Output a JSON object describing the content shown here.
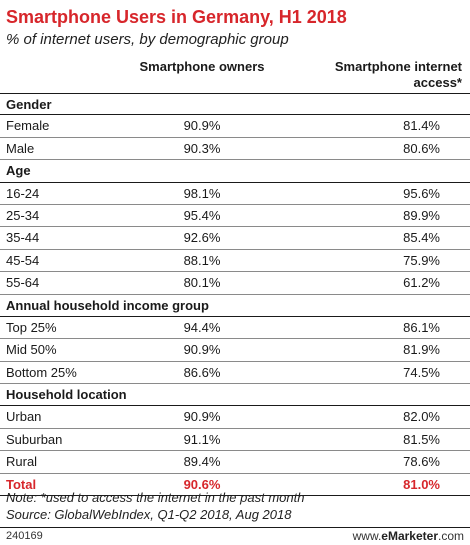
{
  "chart_data": {
    "type": "table",
    "title": "Smartphone Users in Germany, H1 2018",
    "subtitle": "% of internet users, by demographic group",
    "columns": [
      "Smartphone owners",
      "Smartphone internet access*"
    ],
    "rows": [
      {
        "kind": "group",
        "label": "Gender",
        "v1": "",
        "v2": ""
      },
      {
        "kind": "row",
        "label": "Female",
        "v1": "90.9%",
        "v2": "81.4%"
      },
      {
        "kind": "row",
        "label": "Male",
        "v1": "90.3%",
        "v2": "80.6%"
      },
      {
        "kind": "group",
        "label": "Age",
        "v1": "",
        "v2": ""
      },
      {
        "kind": "row",
        "label": "16-24",
        "v1": "98.1%",
        "v2": "95.6%"
      },
      {
        "kind": "row",
        "label": "25-34",
        "v1": "95.4%",
        "v2": "89.9%"
      },
      {
        "kind": "row",
        "label": "35-44",
        "v1": "92.6%",
        "v2": "85.4%"
      },
      {
        "kind": "row",
        "label": "45-54",
        "v1": "88.1%",
        "v2": "75.9%"
      },
      {
        "kind": "row",
        "label": "55-64",
        "v1": "80.1%",
        "v2": "61.2%"
      },
      {
        "kind": "group",
        "label": "Annual household income group",
        "v1": "",
        "v2": ""
      },
      {
        "kind": "row",
        "label": "Top 25%",
        "v1": "94.4%",
        "v2": "86.1%"
      },
      {
        "kind": "row",
        "label": "Mid 50%",
        "v1": "90.9%",
        "v2": "81.9%"
      },
      {
        "kind": "row",
        "label": "Bottom 25%",
        "v1": "86.6%",
        "v2": "74.5%"
      },
      {
        "kind": "group",
        "label": "Household location",
        "v1": "",
        "v2": ""
      },
      {
        "kind": "row",
        "label": "Urban",
        "v1": "90.9%",
        "v2": "82.0%"
      },
      {
        "kind": "row",
        "label": "Suburban",
        "v1": "91.1%",
        "v2": "81.5%"
      },
      {
        "kind": "row",
        "label": "Rural",
        "v1": "89.4%",
        "v2": "78.6%"
      },
      {
        "kind": "total",
        "label": "Total",
        "v1": "90.6%",
        "v2": "81.0%"
      }
    ],
    "note": "Note: *used to access the internet in the past month",
    "source": "Source: GlobalWebIndex, Q1-Q2 2018, Aug 2018"
  },
  "footer": {
    "chart_id": "240169",
    "brand_prefix": "www.",
    "brand_name": "eMarketer",
    "brand_suffix": ".com"
  },
  "colors": {
    "accent": "#d7262b",
    "text": "#1a1a1a",
    "rule": "#8a8a8a"
  }
}
